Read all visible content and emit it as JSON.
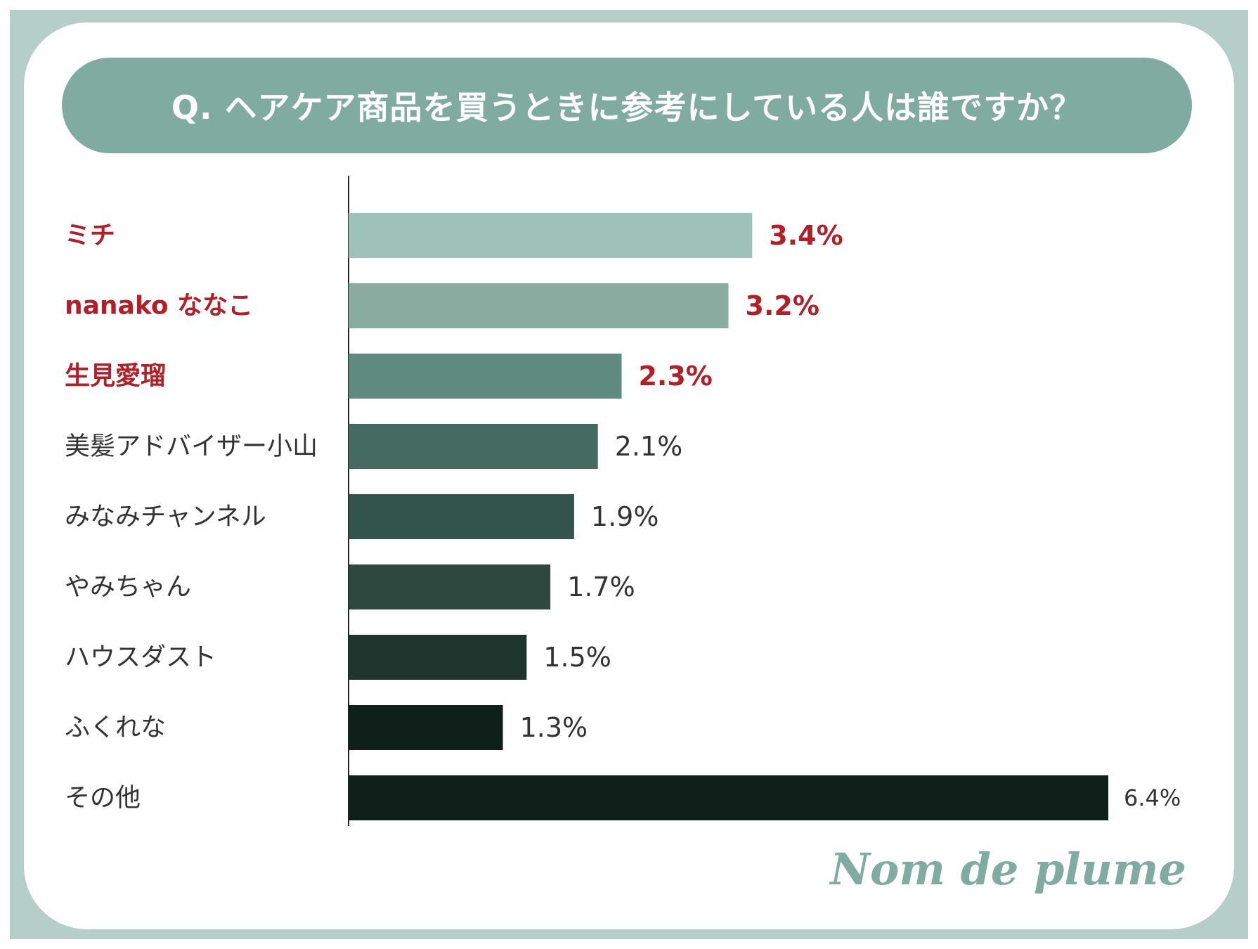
{
  "title": "Q. ヘアケア商品を買うときに参考にしている人は誰ですか？",
  "brand": "Nom de plume",
  "colors": {
    "frame": "#b5cec7",
    "title_bg": "#80aba0",
    "highlight_text": "#b21f27",
    "normal_text": "#333333"
  },
  "chart_data": {
    "type": "bar",
    "orientation": "horizontal",
    "title": "Q. ヘアケア商品を買うときに参考にしている人は誰ですか？",
    "categories": [
      "ミチ",
      "nanako ななこ",
      "生見愛瑠",
      "美髪アドバイザー小山",
      "みなみチャンネル",
      "やみちゃん",
      "ハウスダスト",
      "ふくれな",
      "その他"
    ],
    "values": [
      3.4,
      3.2,
      2.3,
      2.1,
      1.9,
      1.7,
      1.5,
      1.3,
      6.4
    ],
    "value_labels": [
      "3.4%",
      "3.2%",
      "2.3%",
      "2.1%",
      "1.9%",
      "1.7%",
      "1.5%",
      "1.3%",
      "6.4%"
    ],
    "highlighted": [
      true,
      true,
      true,
      false,
      false,
      false,
      false,
      false,
      false
    ],
    "bar_colors": [
      "#9fc2b8",
      "#8aaba0",
      "#5f8a7e",
      "#456b60",
      "#33544a",
      "#2e473f",
      "#1e352e",
      "#0f201a",
      "#0f201a"
    ],
    "unit": "%",
    "xlim": [
      0,
      6.4
    ],
    "grid": false,
    "legend": "none"
  }
}
